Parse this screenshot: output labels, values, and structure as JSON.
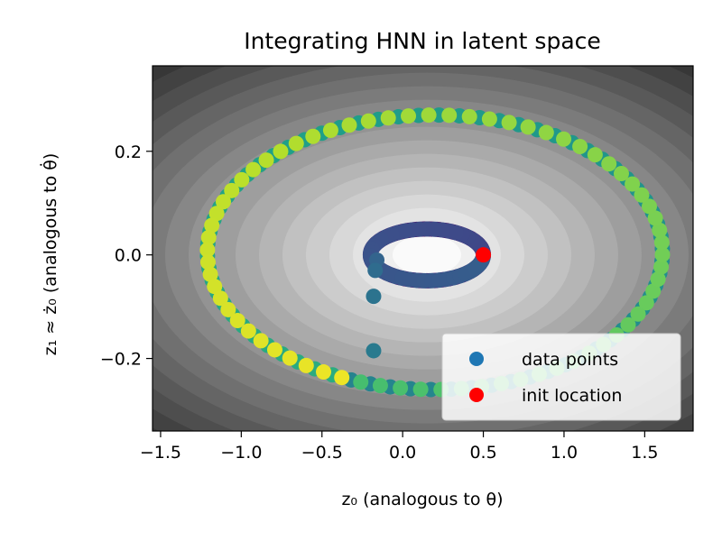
{
  "chart_data": {
    "type": "scatter",
    "title": "Integrating HNN in latent space",
    "xlabel": "z₀ (analogous to θ)",
    "ylabel": "z₁ ≈ ż₀ (analogous to θ̇)",
    "xlim": [
      -1.55,
      1.8
    ],
    "ylim": [
      -0.34,
      0.365
    ],
    "xticks": [
      -1.5,
      -1.0,
      -0.5,
      0.0,
      0.5,
      1.0,
      1.5
    ],
    "xtick_labels": [
      "−1.5",
      "−1.0",
      "−0.5",
      "0.0",
      "0.5",
      "1.0",
      "1.5"
    ],
    "yticks": [
      -0.2,
      0.0,
      0.2
    ],
    "ytick_labels": [
      "−0.2",
      "0.0",
      "0.2"
    ],
    "background": {
      "type": "contour",
      "colormap": "gray",
      "center": [
        0.15,
        0.0
      ]
    },
    "legend": {
      "placement": "lower right",
      "entries": [
        {
          "label": "data points",
          "color": "#1f77b4"
        },
        {
          "label": "init location",
          "color": "#ff0000"
        }
      ]
    },
    "series": [
      {
        "name": "data points",
        "colormap": "viridis",
        "description_free": true,
        "inner_ring": {
          "center_x": 0.15,
          "center_y": 0.0,
          "radius_x": 0.35,
          "radius_y": 0.05
        },
        "outer_ring": {
          "center_x": 0.2,
          "center_y": 0.005,
          "radius_x": 1.41,
          "radius_y": 0.265
        },
        "transition_points": [
          {
            "x": -0.16,
            "y": -0.01
          },
          {
            "x": -0.17,
            "y": -0.03
          },
          {
            "x": -0.18,
            "y": -0.08
          },
          {
            "x": -0.18,
            "y": -0.185
          }
        ]
      },
      {
        "name": "init location",
        "color": "#ff0000",
        "points": [
          {
            "x": 0.5,
            "y": 0.0
          }
        ]
      }
    ]
  }
}
